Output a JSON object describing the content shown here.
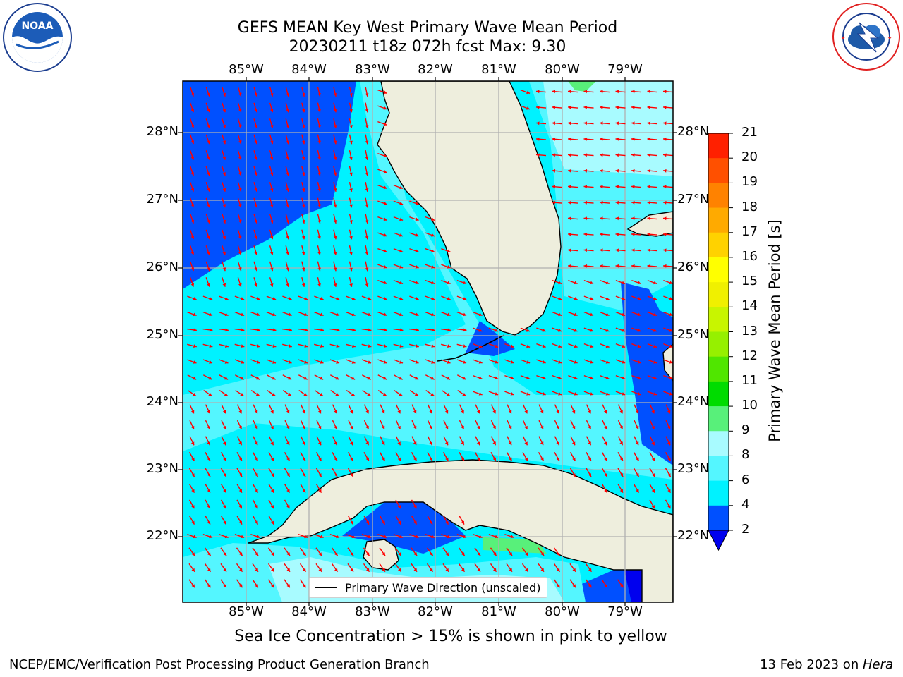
{
  "title": {
    "line1": "GEFS MEAN Key West Primary Wave Mean Period",
    "line2": "20230211 t18z 072h fcst   Max: 9.30"
  },
  "axes": {
    "lon_labels": [
      "85°W",
      "84°W",
      "83°W",
      "82°W",
      "81°W",
      "80°W",
      "79°W"
    ],
    "lat_labels": [
      "28°N",
      "27°N",
      "26°N",
      "25°N",
      "24°N",
      "23°N",
      "22°N"
    ]
  },
  "colorbar": {
    "label": "Primary Wave Mean Period [s]",
    "ticks": [
      "2",
      "4",
      "6",
      "8",
      "9",
      "10",
      "11",
      "12",
      "13",
      "14",
      "15",
      "16",
      "17",
      "18",
      "19",
      "20",
      "21"
    ],
    "colors": [
      "#0050ff",
      "#00f2ff",
      "#54f6ff",
      "#a8fbff",
      "#58f07a",
      "#00dc00",
      "#50e600",
      "#96f000",
      "#c8f500",
      "#f0f000",
      "#ffff00",
      "#ffd200",
      "#ffaa00",
      "#ff8200",
      "#ff5000",
      "#ff2000"
    ],
    "extend_color": "#0000ee"
  },
  "legend": {
    "label": "Primary Wave Direction (unscaled)"
  },
  "caption": "Sea Ice Concentration > 15% is shown in pink to yellow",
  "footer": {
    "left": "NCEP/EMC/Verification Post Processing Product Generation Branch",
    "right_date": "13 Feb 2023 on ",
    "right_host": "Hera"
  },
  "logos": {
    "noaa": "NOAA",
    "nws": "NATIONAL WEATHER SERVICE"
  },
  "colors": {
    "land": "#eeeedd",
    "arrow": "#ff0000",
    "grid": "#b0b0b0"
  }
}
